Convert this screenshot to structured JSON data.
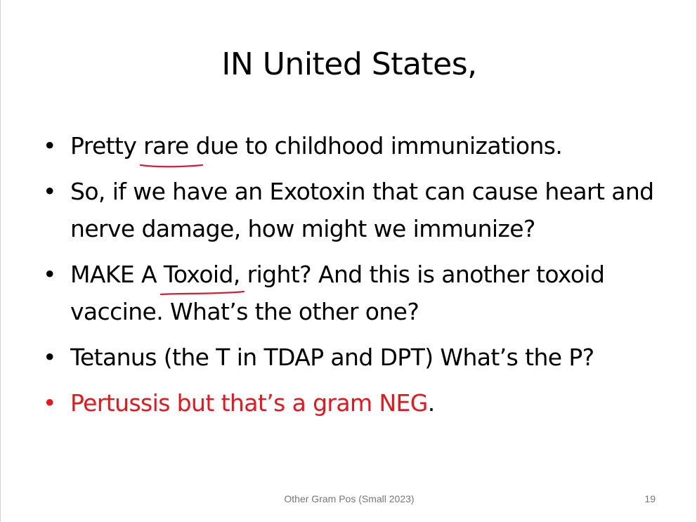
{
  "slide": {
    "title": "IN United States,",
    "bullets": [
      {
        "pre": "Pretty ",
        "underlined": "rare",
        "post": " due to childhood immunizations."
      },
      {
        "text": "So, if we have an Exotoxin that can cause heart and nerve damage, how might we immunize?"
      },
      {
        "pre": "MAKE A ",
        "underlined": "Toxoid",
        "post": ", right? And this is another toxoid vaccine. What’s the other one?"
      },
      {
        "text": "Tetanus (the T in TDAP and DPT) What’s the P?"
      },
      {
        "text": "Pertussis but that’s a gram NEG",
        "tail": "."
      }
    ],
    "footer": "Other Gram Pos (Small 2023)",
    "page_number": "19"
  },
  "colors": {
    "highlight_text": "#e8151b",
    "annotation_ink": "#d0203a",
    "footer_text": "#777777"
  }
}
